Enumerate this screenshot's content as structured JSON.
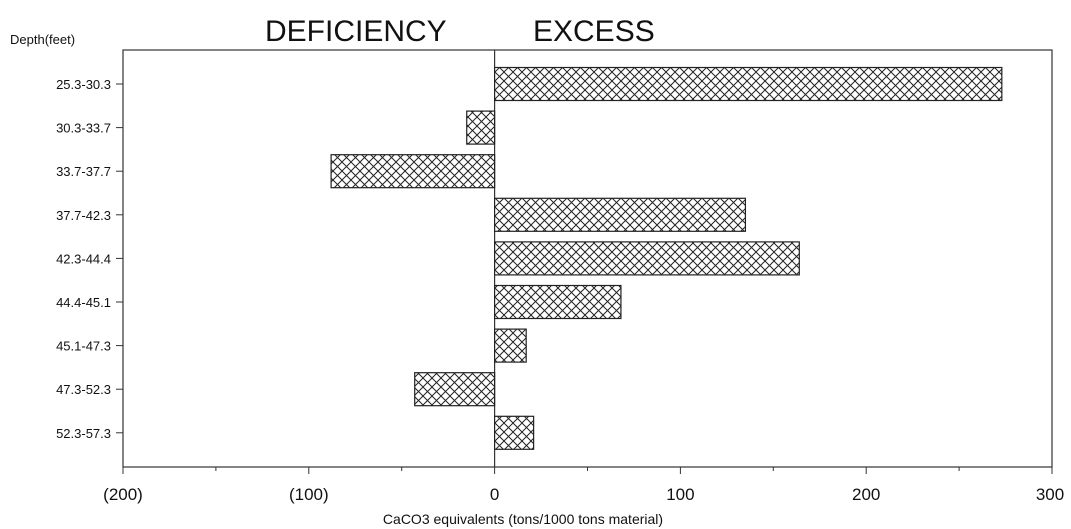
{
  "chart_data": {
    "type": "bar",
    "orientation": "horizontal",
    "y_axis_title": "Depth(feet)",
    "header_left": "DEFICIENCY",
    "header_right": "EXCESS",
    "xlabel": "CaCO3 equivalents (tons/1000 tons material)",
    "xlim": [
      -200,
      300
    ],
    "x_ticks": [
      -200,
      -100,
      0,
      100,
      200,
      300
    ],
    "x_tick_labels": [
      "(200)",
      "(100)",
      "0",
      "100",
      "200",
      "300"
    ],
    "categories": [
      "25.3-30.3",
      "30.3-33.7",
      "33.7-37.7",
      "37.7-42.3",
      "42.3-44.4",
      "44.4-45.1",
      "45.1-47.3",
      "47.3-52.3",
      "52.3-57.3"
    ],
    "values": [
      273,
      -15,
      -88,
      135,
      164,
      68,
      17,
      -43,
      21
    ],
    "bar_pattern": "crosshatch",
    "grid": false,
    "legend": "none"
  }
}
